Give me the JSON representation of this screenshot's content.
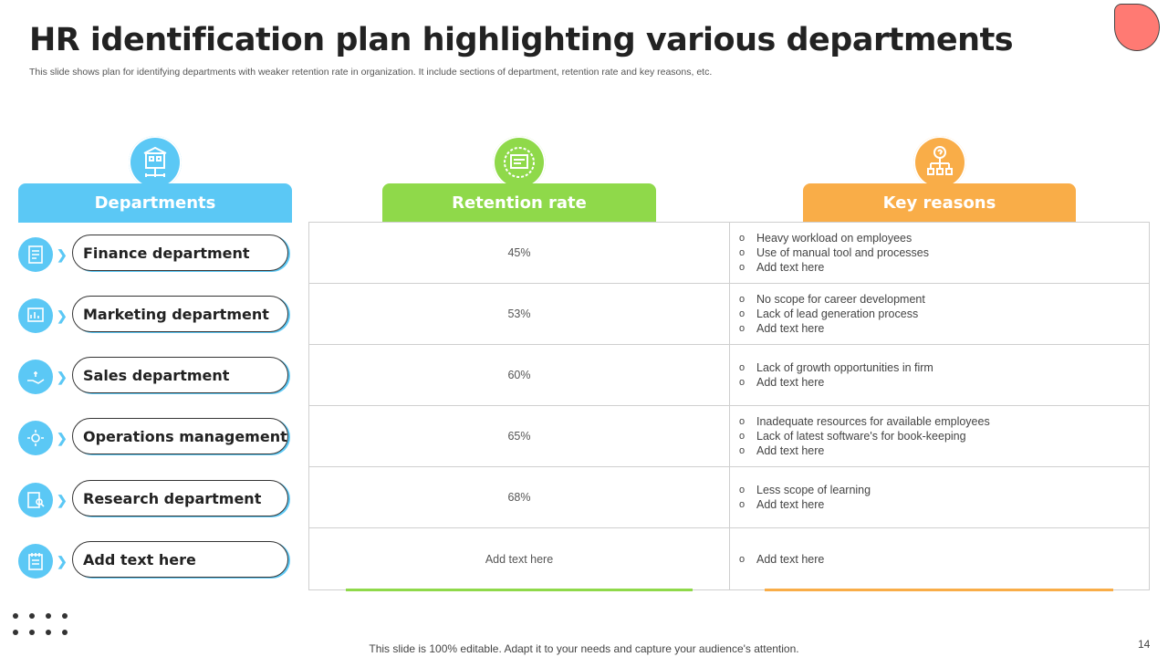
{
  "title": "HR identification plan highlighting various departments",
  "subtitle": "This slide shows plan for identifying departments with weaker retention rate in organization. It include sections of department, retention rate and key reasons, etc.",
  "columns": {
    "departments": {
      "label": "Departments",
      "icon": "building-network-icon"
    },
    "retention": {
      "label": "Retention rate",
      "icon": "dashboard-report-icon"
    },
    "reasons": {
      "label": "Key reasons",
      "icon": "question-hierarchy-icon"
    }
  },
  "rows": [
    {
      "department": "Finance department",
      "icon": "finance-document-icon",
      "rate": "45%",
      "reasons": [
        "Heavy workload on employees",
        "Use of manual tool and processes",
        "Add text here"
      ]
    },
    {
      "department": "Marketing department",
      "icon": "marketing-chart-icon",
      "rate": "53%",
      "reasons": [
        "No scope for career development",
        "Lack of lead generation process",
        "Add text here"
      ]
    },
    {
      "department": "Sales department",
      "icon": "sales-hand-icon",
      "rate": "60%",
      "reasons": [
        "Lack of growth opportunities in firm",
        "Add text here"
      ]
    },
    {
      "department": "Operations management",
      "icon": "gears-cycle-icon",
      "rate": "65%",
      "reasons": [
        "Inadequate resources for available employees",
        "Lack of latest software's for book-keeping",
        "Add text here"
      ]
    },
    {
      "department": "Research department",
      "icon": "research-report-icon",
      "rate": "68%",
      "reasons": [
        "Less scope of learning",
        "Add text here"
      ]
    },
    {
      "department": "Add text here",
      "icon": "notepad-icon",
      "rate": "Add text here",
      "reasons": [
        "Add text here"
      ]
    }
  ],
  "footer": "This slide is 100% editable. Adapt it to your needs and capture your audience's attention.",
  "page_number": "14",
  "colors": {
    "blue": "#5bc8f5",
    "green": "#8fd94a",
    "orange": "#f9ad48",
    "corner": "#ff7a73"
  }
}
